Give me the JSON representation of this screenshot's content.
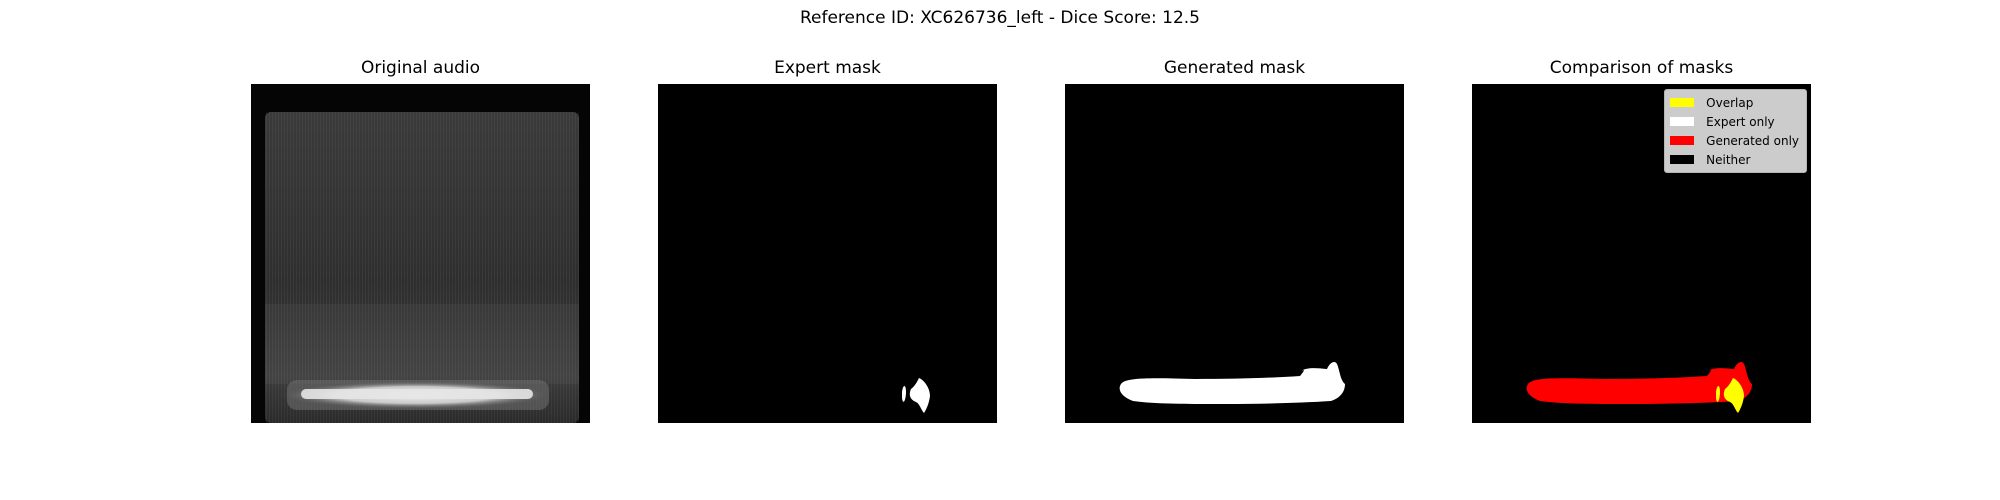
{
  "figure": {
    "title": "Reference ID: XC626736_left - Dice Score: 12.5"
  },
  "panels": [
    {
      "title": "Original audio"
    },
    {
      "title": "Expert mask"
    },
    {
      "title": "Generated mask"
    },
    {
      "title": "Comparison of masks"
    }
  ],
  "legend": {
    "items": [
      {
        "label": "Overlap",
        "color": "#ffff00"
      },
      {
        "label": "Expert only",
        "color": "#ffffff"
      },
      {
        "label": "Generated only",
        "color": "#ff0000"
      },
      {
        "label": "Neither",
        "color": "#000000"
      }
    ]
  },
  "colors": {
    "background": "#000000",
    "mask": "#ffffff",
    "overlap": "#ffff00",
    "generated_only": "#ff0000"
  }
}
